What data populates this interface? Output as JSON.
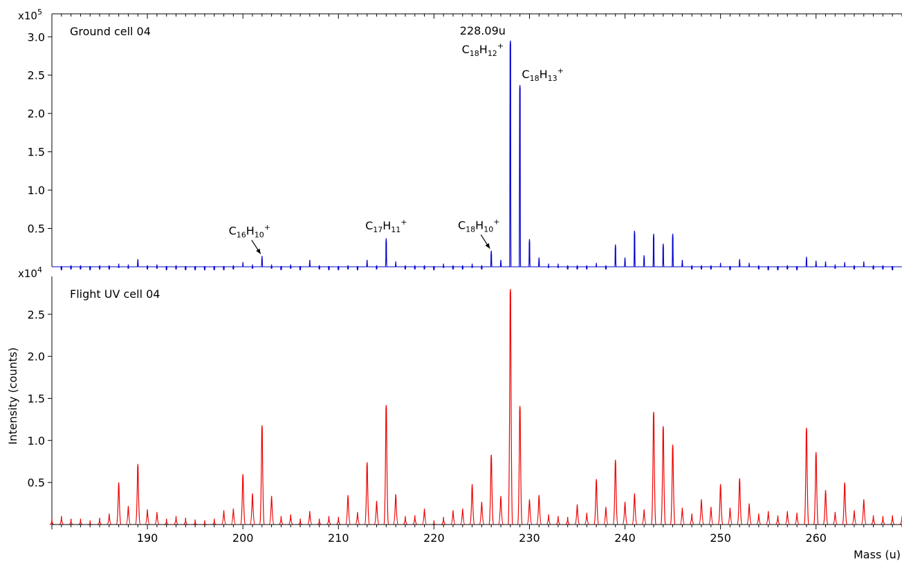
{
  "chart_data": [
    {
      "type": "line",
      "panel": "top",
      "panel_label": "Ground cell 04",
      "scale_label": "x10",
      "scale_exp": "5",
      "color": "#0000cc",
      "ylim": [
        0,
        3.3
      ],
      "yticks": [
        "0.5",
        "1.0",
        "1.5",
        "2.0",
        "2.5",
        "3.0"
      ],
      "peaks": [
        [
          181,
          0.01
        ],
        [
          182,
          0.02
        ],
        [
          183,
          0.02
        ],
        [
          184,
          0.01
        ],
        [
          185,
          0.02
        ],
        [
          186,
          0.02
        ],
        [
          187,
          0.04
        ],
        [
          188,
          0.03
        ],
        [
          189,
          0.1
        ],
        [
          190,
          0.02
        ],
        [
          191,
          0.03
        ],
        [
          192,
          0.01
        ],
        [
          193,
          0.02
        ],
        [
          194,
          0.01
        ],
        [
          195,
          0.01
        ],
        [
          196,
          0.01
        ],
        [
          197,
          0.01
        ],
        [
          198,
          0.01
        ],
        [
          199,
          0.02
        ],
        [
          200,
          0.06
        ],
        [
          201,
          0.03
        ],
        [
          202,
          0.14
        ],
        [
          203,
          0.03
        ],
        [
          204,
          0.01
        ],
        [
          205,
          0.03
        ],
        [
          206,
          0.01
        ],
        [
          207,
          0.09
        ],
        [
          208,
          0.02
        ],
        [
          209,
          0.01
        ],
        [
          210,
          0.01
        ],
        [
          211,
          0.02
        ],
        [
          212,
          0.01
        ],
        [
          213,
          0.09
        ],
        [
          214,
          0.02
        ],
        [
          215,
          0.37
        ],
        [
          216,
          0.07
        ],
        [
          217,
          0.02
        ],
        [
          218,
          0.02
        ],
        [
          219,
          0.02
        ],
        [
          220,
          0.01
        ],
        [
          221,
          0.04
        ],
        [
          222,
          0.02
        ],
        [
          223,
          0.02
        ],
        [
          224,
          0.04
        ],
        [
          225,
          0.02
        ],
        [
          226,
          0.21
        ],
        [
          227,
          0.09
        ],
        [
          228,
          2.95
        ],
        [
          229,
          2.37
        ],
        [
          230,
          0.36
        ],
        [
          231,
          0.12
        ],
        [
          232,
          0.04
        ],
        [
          233,
          0.04
        ],
        [
          234,
          0.02
        ],
        [
          235,
          0.02
        ],
        [
          236,
          0.02
        ],
        [
          237,
          0.05
        ],
        [
          238,
          0.02
        ],
        [
          239,
          0.29
        ],
        [
          240,
          0.12
        ],
        [
          241,
          0.47
        ],
        [
          242,
          0.15
        ],
        [
          243,
          0.43
        ],
        [
          244,
          0.3
        ],
        [
          245,
          0.43
        ],
        [
          246,
          0.09
        ],
        [
          247,
          0.02
        ],
        [
          248,
          0.02
        ],
        [
          249,
          0.02
        ],
        [
          250,
          0.05
        ],
        [
          251,
          0.01
        ],
        [
          252,
          0.1
        ],
        [
          253,
          0.05
        ],
        [
          254,
          0.02
        ],
        [
          255,
          0.01
        ],
        [
          256,
          0.01
        ],
        [
          257,
          0.02
        ],
        [
          258,
          0.01
        ],
        [
          259,
          0.13
        ],
        [
          260,
          0.08
        ],
        [
          261,
          0.07
        ],
        [
          262,
          0.03
        ],
        [
          263,
          0.06
        ],
        [
          264,
          0.02
        ],
        [
          265,
          0.07
        ],
        [
          266,
          0.02
        ],
        [
          267,
          0.02
        ],
        [
          268,
          0.01
        ]
      ],
      "annotations": [
        {
          "formula": [
            "C",
            "16",
            "H",
            "10",
            "+"
          ],
          "x": 202,
          "y": 0.14,
          "arrow": true
        },
        {
          "formula": [
            "C",
            "17",
            "H",
            "11",
            "+"
          ],
          "x": 215,
          "y": 0.37,
          "arrow": false
        },
        {
          "formula": [
            "C",
            "18",
            "H",
            "10",
            "+"
          ],
          "x": 226,
          "y": 0.21,
          "arrow": true
        },
        {
          "mass_label": "228.09u",
          "formula": [
            "C",
            "18",
            "H",
            "12",
            "+"
          ],
          "x": 228,
          "y": 2.95,
          "arrow": false
        },
        {
          "formula": [
            "C",
            "18",
            "H",
            "13",
            "+"
          ],
          "x": 229,
          "y": 2.37,
          "arrow": false
        }
      ]
    },
    {
      "type": "line",
      "panel": "bottom",
      "panel_label": "Flight UV cell 04",
      "scale_label": "x10",
      "scale_exp": "4",
      "color": "#ee0000",
      "ylim": [
        0,
        2.95
      ],
      "yticks": [
        "0.5",
        "1.0",
        "1.5",
        "2.0",
        "2.5"
      ],
      "peaks": [
        [
          180,
          0.07
        ],
        [
          181,
          0.1
        ],
        [
          182,
          0.07
        ],
        [
          183,
          0.07
        ],
        [
          184,
          0.05
        ],
        [
          185,
          0.08
        ],
        [
          186,
          0.13
        ],
        [
          187,
          0.5
        ],
        [
          188,
          0.22
        ],
        [
          189,
          0.72
        ],
        [
          190,
          0.18
        ],
        [
          191,
          0.15
        ],
        [
          192,
          0.07
        ],
        [
          193,
          0.1
        ],
        [
          194,
          0.08
        ],
        [
          195,
          0.06
        ],
        [
          196,
          0.05
        ],
        [
          197,
          0.07
        ],
        [
          198,
          0.17
        ],
        [
          199,
          0.19
        ],
        [
          200,
          0.6
        ],
        [
          201,
          0.37
        ],
        [
          202,
          1.18
        ],
        [
          203,
          0.34
        ],
        [
          204,
          0.1
        ],
        [
          205,
          0.12
        ],
        [
          206,
          0.07
        ],
        [
          207,
          0.16
        ],
        [
          208,
          0.07
        ],
        [
          209,
          0.1
        ],
        [
          210,
          0.09
        ],
        [
          211,
          0.35
        ],
        [
          212,
          0.15
        ],
        [
          213,
          0.74
        ],
        [
          214,
          0.28
        ],
        [
          215,
          1.42
        ],
        [
          216,
          0.36
        ],
        [
          217,
          0.1
        ],
        [
          218,
          0.11
        ],
        [
          219,
          0.19
        ],
        [
          220,
          0.05
        ],
        [
          221,
          0.09
        ],
        [
          222,
          0.17
        ],
        [
          223,
          0.19
        ],
        [
          224,
          0.48
        ],
        [
          225,
          0.27
        ],
        [
          226,
          0.83
        ],
        [
          227,
          0.34
        ],
        [
          228,
          2.8
        ],
        [
          229,
          1.41
        ],
        [
          230,
          0.3
        ],
        [
          231,
          0.35
        ],
        [
          232,
          0.12
        ],
        [
          233,
          0.1
        ],
        [
          234,
          0.09
        ],
        [
          235,
          0.24
        ],
        [
          236,
          0.14
        ],
        [
          237,
          0.54
        ],
        [
          238,
          0.21
        ],
        [
          239,
          0.77
        ],
        [
          240,
          0.27
        ],
        [
          241,
          0.37
        ],
        [
          242,
          0.18
        ],
        [
          243,
          1.34
        ],
        [
          244,
          1.17
        ],
        [
          245,
          0.95
        ],
        [
          246,
          0.2
        ],
        [
          247,
          0.13
        ],
        [
          248,
          0.3
        ],
        [
          249,
          0.21
        ],
        [
          250,
          0.48
        ],
        [
          251,
          0.2
        ],
        [
          252,
          0.55
        ],
        [
          253,
          0.25
        ],
        [
          254,
          0.13
        ],
        [
          255,
          0.16
        ],
        [
          256,
          0.11
        ],
        [
          257,
          0.16
        ],
        [
          258,
          0.14
        ],
        [
          259,
          1.15
        ],
        [
          260,
          0.86
        ],
        [
          261,
          0.41
        ],
        [
          262,
          0.15
        ],
        [
          263,
          0.5
        ],
        [
          264,
          0.17
        ],
        [
          265,
          0.3
        ],
        [
          266,
          0.11
        ],
        [
          267,
          0.1
        ],
        [
          268,
          0.11
        ],
        [
          269,
          0.1
        ]
      ],
      "annotations": []
    }
  ],
  "axes": {
    "xlim": [
      180,
      269
    ],
    "xticks": [
      190,
      200,
      210,
      220,
      230,
      240,
      250,
      260
    ],
    "xlabel": "Mass (u)",
    "ylabel": "Intensity (counts)"
  }
}
